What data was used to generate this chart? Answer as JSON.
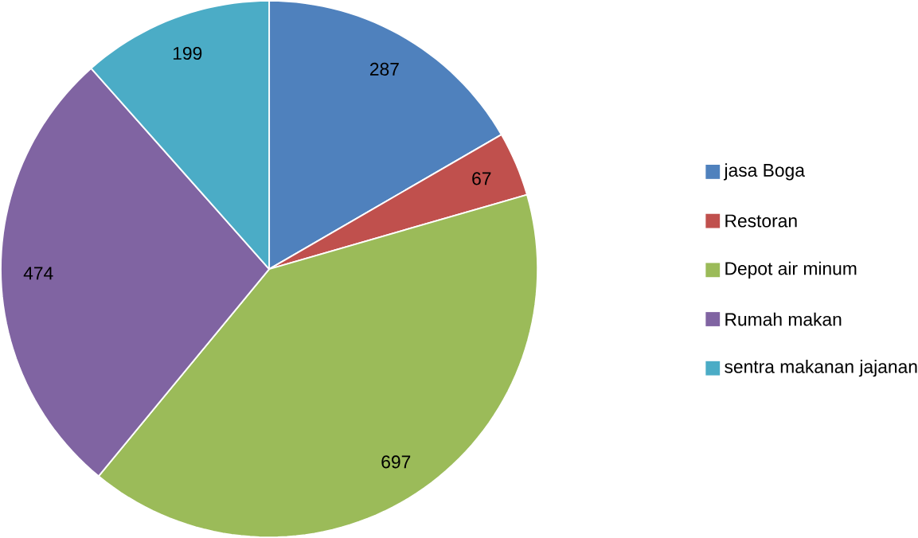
{
  "chart_data": {
    "type": "pie",
    "categories": [
      "jasa Boga",
      "Restoran",
      "Depot air minum",
      "Rumah makan",
      "sentra makanan jajanan"
    ],
    "values": [
      287,
      67,
      697,
      474,
      199
    ],
    "colors": [
      "#4f81bd",
      "#c0504d",
      "#9bbb59",
      "#8064a2",
      "#4bacc6"
    ],
    "data_labels": true,
    "legend": "right"
  }
}
